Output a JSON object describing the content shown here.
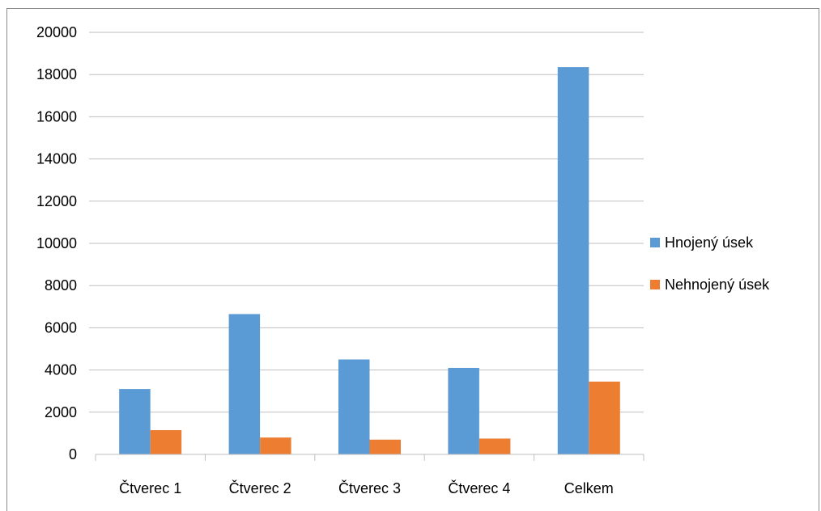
{
  "chart_data": {
    "type": "bar",
    "title": "",
    "xlabel": "",
    "ylabel": "",
    "categories": [
      "Čtverec 1",
      "Čtverec 2",
      "Čtverec 3",
      "Čtverec 4",
      "Celkem"
    ],
    "series": [
      {
        "name": "Hnojený úsek",
        "color": "#5B9BD5",
        "values": [
          3100,
          6650,
          4500,
          4100,
          18350
        ]
      },
      {
        "name": "Nehnojený úsek",
        "color": "#ED7D31",
        "values": [
          1150,
          800,
          700,
          750,
          3450
        ]
      }
    ],
    "ylim": [
      0,
      20000
    ],
    "yticks": [
      "0",
      "2000",
      "4000",
      "6000",
      "8000",
      "10000",
      "12000",
      "14000",
      "16000",
      "18000",
      "20000"
    ],
    "grid": true,
    "legend": "right"
  }
}
